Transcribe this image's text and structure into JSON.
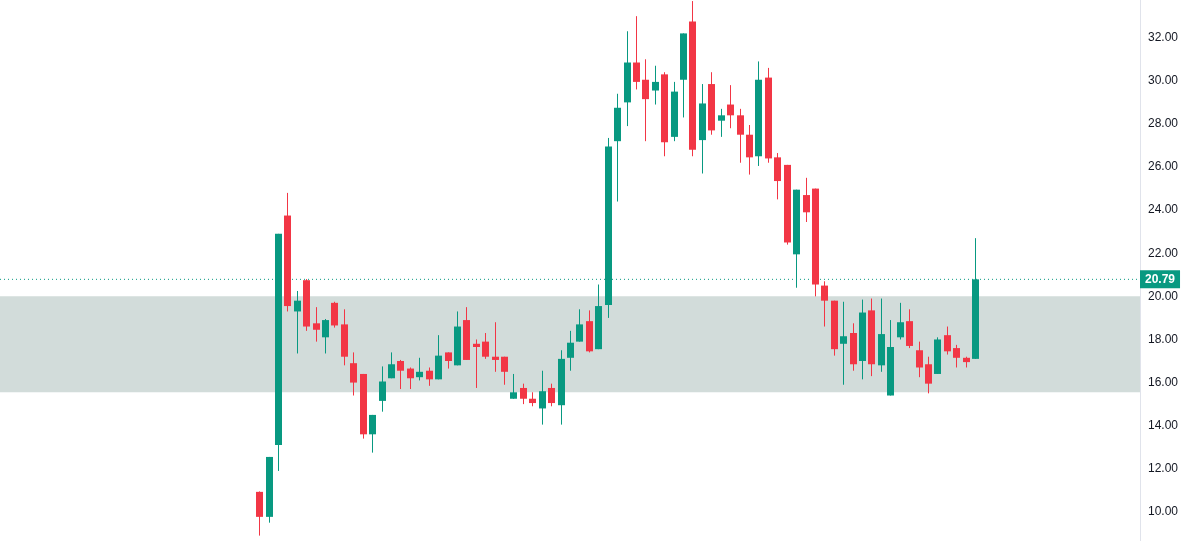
{
  "chart_data": {
    "type": "candlestick",
    "categories": [
      null,
      null,
      null,
      null,
      null,
      null,
      null,
      null,
      null,
      null,
      null,
      null,
      null,
      null,
      null,
      null,
      null,
      null,
      null,
      null,
      null,
      null,
      null,
      null,
      null,
      null,
      null,
      null,
      null,
      null,
      null,
      null,
      null,
      null,
      null,
      null,
      null,
      null,
      null,
      null,
      null,
      null,
      null,
      null,
      null,
      null,
      null,
      null,
      null,
      null,
      null,
      null,
      null,
      null,
      null,
      null,
      null,
      null,
      null,
      null,
      null,
      null,
      null,
      null,
      null,
      null,
      null,
      null,
      null,
      null,
      null,
      null,
      null,
      null,
      null,
      null,
      null,
      null,
      null,
      null,
      null,
      null,
      null,
      null,
      null,
      null,
      null,
      null,
      null,
      null,
      null,
      null,
      null,
      null,
      null,
      null,
      null,
      null,
      null,
      null,
      null,
      null,
      null,
      null,
      null,
      null,
      null,
      null,
      null,
      null,
      null,
      null,
      null,
      null,
      null,
      null,
      null,
      null,
      null,
      null,
      null
    ],
    "ohlc": [
      null,
      null,
      null,
      null,
      null,
      null,
      null,
      null,
      null,
      null,
      null,
      null,
      null,
      null,
      null,
      null,
      null,
      null,
      null,
      null,
      null,
      null,
      null,
      null,
      null,
      null,
      null,
      [
        10.93,
        10.95,
        8.9,
        9.77
      ],
      [
        9.77,
        12.55,
        9.5,
        12.55
      ],
      [
        13.1,
        22.9,
        11.9,
        22.9
      ],
      [
        23.75,
        24.8,
        19.3,
        19.55
      ],
      [
        19.3,
        20.25,
        17.35,
        19.8
      ],
      [
        20.75,
        20.8,
        18.4,
        18.6
      ],
      [
        18.75,
        19.5,
        17.9,
        18.45
      ],
      [
        18.1,
        18.95,
        17.35,
        18.9
      ],
      [
        19.7,
        19.75,
        18.55,
        18.65
      ],
      [
        18.7,
        19.4,
        16.8,
        17.2
      ],
      [
        16.9,
        17.4,
        15.4,
        16.0
      ],
      [
        16.4,
        16.4,
        13.4,
        13.6
      ],
      [
        13.6,
        14.5,
        12.75,
        14.5
      ],
      [
        15.15,
        16.75,
        14.65,
        16.05
      ],
      [
        16.2,
        17.4,
        16.2,
        16.85
      ],
      [
        17.0,
        17.05,
        15.7,
        16.55
      ],
      [
        16.65,
        16.7,
        15.7,
        16.2
      ],
      [
        16.25,
        17.15,
        16.1,
        16.5
      ],
      [
        16.55,
        16.7,
        15.85,
        16.15
      ],
      [
        16.15,
        18.2,
        16.15,
        17.25
      ],
      [
        17.4,
        17.4,
        16.65,
        17.0
      ],
      [
        16.8,
        19.3,
        16.8,
        18.6
      ],
      [
        18.9,
        19.5,
        17.05,
        17.05
      ],
      [
        17.8,
        18.0,
        15.75,
        17.65
      ],
      [
        17.9,
        18.3,
        17.1,
        17.2
      ],
      [
        17.2,
        18.8,
        16.5,
        17.05
      ],
      [
        17.2,
        17.2,
        15.9,
        16.5
      ],
      [
        15.25,
        16.4,
        15.25,
        15.55
      ],
      [
        15.75,
        15.95,
        15.0,
        15.25
      ],
      [
        15.25,
        15.55,
        14.9,
        15.05
      ],
      [
        14.8,
        16.55,
        14.05,
        15.6
      ],
      [
        15.75,
        15.95,
        14.9,
        15.05
      ],
      [
        14.95,
        17.5,
        14.05,
        17.1
      ],
      [
        17.15,
        18.4,
        16.55,
        17.85
      ],
      [
        17.9,
        19.4,
        17.9,
        18.7
      ],
      [
        18.85,
        19.35,
        17.4,
        17.45
      ],
      [
        17.55,
        20.55,
        17.55,
        19.55
      ],
      [
        19.6,
        27.35,
        19.0,
        26.95
      ],
      [
        27.2,
        29.4,
        24.4,
        28.75
      ],
      [
        29.0,
        32.3,
        27.9,
        30.85
      ],
      [
        30.85,
        33.0,
        29.6,
        29.95
      ],
      [
        30.05,
        31.0,
        27.2,
        29.15
      ],
      [
        29.55,
        30.7,
        28.9,
        29.95
      ],
      [
        30.3,
        30.4,
        26.5,
        27.15
      ],
      [
        27.4,
        29.95,
        27.2,
        29.5
      ],
      [
        30.05,
        32.2,
        28.3,
        32.2
      ],
      [
        32.75,
        33.7,
        26.5,
        26.8
      ],
      [
        27.25,
        29.85,
        25.7,
        28.95
      ],
      [
        29.85,
        30.4,
        27.5,
        27.7
      ],
      [
        28.15,
        28.7,
        27.4,
        28.4
      ],
      [
        28.9,
        29.8,
        27.8,
        28.4
      ],
      [
        28.4,
        28.7,
        26.2,
        27.5
      ],
      [
        27.5,
        27.95,
        25.65,
        26.45
      ],
      [
        26.5,
        30.9,
        26.05,
        30.05
      ],
      [
        30.15,
        30.6,
        26.2,
        26.4
      ],
      [
        26.45,
        26.65,
        24.5,
        25.35
      ],
      [
        26.1,
        26.1,
        22.4,
        22.5
      ],
      [
        21.95,
        24.95,
        20.4,
        24.95
      ],
      [
        24.7,
        25.5,
        23.45,
        23.9
      ],
      [
        25.0,
        25.0,
        20.0,
        20.55
      ],
      [
        20.5,
        20.7,
        18.6,
        19.8
      ],
      [
        19.8,
        19.8,
        17.25,
        17.55
      ],
      [
        17.8,
        19.75,
        15.9,
        18.15
      ],
      [
        18.3,
        18.75,
        16.55,
        16.85
      ],
      [
        17.0,
        19.85,
        16.15,
        19.25
      ],
      [
        19.35,
        19.9,
        16.3,
        16.85
      ],
      [
        16.8,
        19.9,
        16.5,
        18.25
      ],
      [
        15.4,
        18.9,
        15.4,
        17.65
      ],
      [
        18.1,
        19.7,
        18.0,
        18.8
      ],
      [
        18.85,
        19.4,
        17.6,
        17.7
      ],
      [
        17.5,
        17.9,
        16.25,
        16.7
      ],
      [
        16.85,
        17.2,
        15.5,
        15.95
      ],
      [
        16.4,
        18.1,
        16.4,
        18.0
      ],
      [
        18.2,
        18.6,
        17.3,
        17.45
      ],
      [
        17.6,
        17.75,
        16.7,
        17.15
      ],
      [
        17.15,
        17.2,
        16.7,
        16.95
      ],
      [
        17.1,
        22.7,
        17.1,
        20.79
      ],
      null,
      null,
      null,
      null,
      null,
      null,
      null,
      null,
      null,
      null,
      null,
      null,
      null,
      null,
      null,
      null,
      null
    ],
    "colors": [
      null,
      null,
      null,
      null,
      null,
      null,
      null,
      null,
      null,
      null,
      null,
      null,
      null,
      null,
      null,
      null,
      null,
      null,
      null,
      null,
      null,
      null,
      null,
      null,
      null,
      null,
      null,
      "#f23645",
      "#089981",
      "#089981",
      "#f23645",
      "#089981",
      "#f23645",
      "#f23645",
      "#089981",
      "#f23645",
      "#f23645",
      "#f23645",
      "#f23645",
      "#089981",
      "#089981",
      "#089981",
      "#f23645",
      "#f23645",
      "#089981",
      "#f23645",
      "#089981",
      "#f23645",
      "#089981",
      "#f23645",
      "#f23645",
      "#f23645",
      "#f23645",
      "#f23645",
      "#089981",
      "#f23645",
      "#f23645",
      "#089981",
      "#f23645",
      "#089981",
      "#089981",
      "#089981",
      "#f23645",
      "#089981",
      "#089981",
      "#089981",
      "#089981",
      "#f23645",
      "#f23645",
      "#089981",
      "#f23645",
      "#089981",
      "#089981",
      "#f23645",
      "#089981",
      "#f23645",
      "#089981",
      "#f23645",
      "#f23645",
      "#f23645",
      "#089981",
      "#f23645",
      "#f23645",
      "#f23645",
      "#089981",
      "#f23645",
      "#f23645",
      "#f23645",
      "#f23645",
      "#089981",
      "#f23645",
      "#089981",
      "#f23645",
      "#089981",
      "#089981",
      "#089981",
      "#f23645",
      "#f23645",
      "#f23645",
      "#089981",
      "#f23645",
      "#f23645",
      "#f23645",
      "#089981",
      null,
      null,
      null,
      null,
      null,
      null,
      null,
      null,
      null,
      null,
      null,
      null,
      null,
      null,
      null,
      null,
      null
    ],
    "ylim": [
      8.65,
      33.75
    ],
    "yticks": [
      {
        "value": 10,
        "label": "10.00"
      },
      {
        "value": 12,
        "label": "12.00"
      },
      {
        "value": 14,
        "label": "14.00"
      },
      {
        "value": 16,
        "label": "16.00"
      },
      {
        "value": 18,
        "label": "18.00"
      },
      {
        "value": 20,
        "label": "20.00"
      },
      {
        "value": 22,
        "label": "22.00"
      },
      {
        "value": 24,
        "label": "24.00"
      },
      {
        "value": 26,
        "label": "26.00"
      },
      {
        "value": 28,
        "label": "28.00"
      },
      {
        "value": 30,
        "label": "30.00"
      },
      {
        "value": 32,
        "label": "32.00"
      }
    ],
    "tick_labels": "y",
    "grid": false,
    "legend": false,
    "ref_lines": [
      {
        "axis": "y",
        "value": 20.79,
        "label": "20.79",
        "color": "#089981",
        "line_style": "dotted"
      }
    ],
    "bands": [
      {
        "axis": "y",
        "from": 15.55,
        "to": 20.0,
        "color": "#cdd8d6"
      }
    ]
  }
}
